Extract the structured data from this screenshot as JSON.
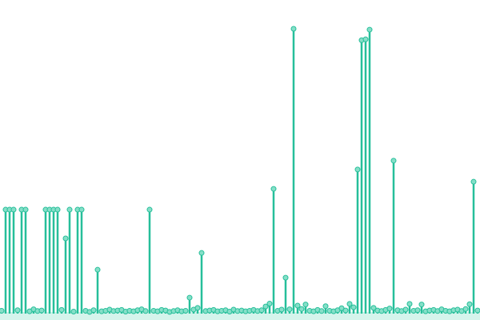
{
  "chart_data": {
    "type": "lollipop",
    "color": "#26bf9a",
    "dot_fill": "#86dfc8",
    "xlim": [
      0,
      600
    ],
    "ylim": [
      0,
      100
    ],
    "x": [
      2,
      7,
      12,
      17,
      22,
      27,
      32,
      37,
      42,
      47,
      52,
      57,
      62,
      67,
      72,
      77,
      82,
      87,
      92,
      97,
      102,
      107,
      112,
      117,
      122,
      127,
      132,
      137,
      142,
      147,
      152,
      157,
      162,
      167,
      172,
      177,
      182,
      187,
      192,
      197,
      202,
      207,
      212,
      217,
      222,
      227,
      232,
      237,
      242,
      247,
      252,
      257,
      262,
      267,
      272,
      277,
      282,
      287,
      292,
      297,
      302,
      307,
      312,
      317,
      322,
      327,
      332,
      337,
      342,
      347,
      352,
      357,
      362,
      367,
      372,
      377,
      382,
      387,
      392,
      397,
      402,
      407,
      412,
      417,
      422,
      427,
      432,
      437,
      442,
      447,
      452,
      457,
      462,
      467,
      472,
      477,
      482,
      487,
      492,
      497,
      502,
      507,
      512,
      517,
      522,
      527,
      532,
      537,
      542,
      547,
      552,
      557,
      562,
      567,
      572,
      577,
      582,
      587,
      592,
      597
    ],
    "values": [
      1,
      36.5,
      36.5,
      36.5,
      1.2,
      36.5,
      36.5,
      0.8,
      1.5,
      0.9,
      1.1,
      36.5,
      36.5,
      36.5,
      36.5,
      1.3,
      26.4,
      36.5,
      0.7,
      36.5,
      36.5,
      1,
      0.6,
      1.2,
      15.4,
      0.8,
      1,
      1.4,
      0.9,
      1.1,
      1.3,
      0.7,
      1,
      0.8,
      1.2,
      1.5,
      0.9,
      36.5,
      1,
      0.8,
      1.3,
      1.1,
      0.6,
      0.9,
      1.2,
      0.8,
      1,
      5.6,
      1.4,
      2,
      21.3,
      0.9,
      1.1,
      1.3,
      0.8,
      1,
      1.2,
      0.7,
      1.4,
      0.9,
      1.1,
      0.8,
      1,
      1.3,
      0.9,
      1.2,
      2.5,
      3.5,
      43.8,
      1,
      1.4,
      12.6,
      1.5,
      100,
      2.8,
      1.6,
      3.2,
      1,
      0.8,
      1.3,
      0.9,
      2.6,
      1,
      0.8,
      1.2,
      1.9,
      1.1,
      3.4,
      2.2,
      50.6,
      96,
      96.3,
      99.7,
      2,
      1.1,
      0.9,
      1.3,
      1.8,
      53.7,
      1.2,
      0.9,
      1.4,
      3.4,
      1,
      1.2,
      3.2,
      0.8,
      1.1,
      1.3,
      0.9,
      1.5,
      1,
      0.8,
      1.2,
      1.4,
      0.9,
      1.6,
      3.3,
      46.3,
      1.1
    ]
  }
}
